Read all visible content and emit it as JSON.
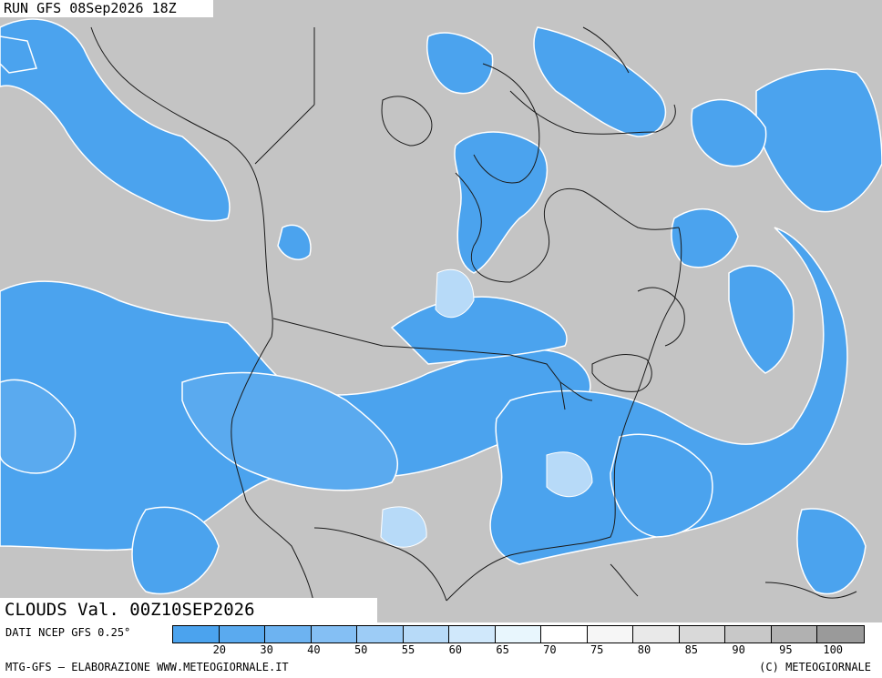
{
  "header": {
    "run": "RUN GFS 08Sep2026 18Z"
  },
  "validity": {
    "text": "CLOUDS Val. 00Z10SEP2026"
  },
  "legend": {
    "dataset": "DATI NCEP GFS 0.25°",
    "swatch_colors": [
      "#4ba3ee",
      "#5aaaef",
      "#6db3f1",
      "#84bff4",
      "#9dccf6",
      "#b7daf8",
      "#d0e8fb",
      "#e8f6fd",
      "#ffffff",
      "#f6f6f6",
      "#e9e9e9",
      "#d9d9d9",
      "#c8c8c8",
      "#b1b1b1",
      "#9a9a9a"
    ],
    "ticks": [
      "20",
      "30",
      "40",
      "50",
      "55",
      "60",
      "65",
      "70",
      "75",
      "80",
      "85",
      "90",
      "95",
      "100"
    ]
  },
  "credits": {
    "left": "MTG-GFS – ELABORAZIONE WWW.METEOGIORNALE.IT",
    "right": "(C) METEOGIORNALE"
  },
  "map_colors": {
    "gray_cloud": "#c4c4c4",
    "clear_blue": "#4ba3ee",
    "mid_blue": "#7fbaf3",
    "coast": "#1a1a1a"
  }
}
